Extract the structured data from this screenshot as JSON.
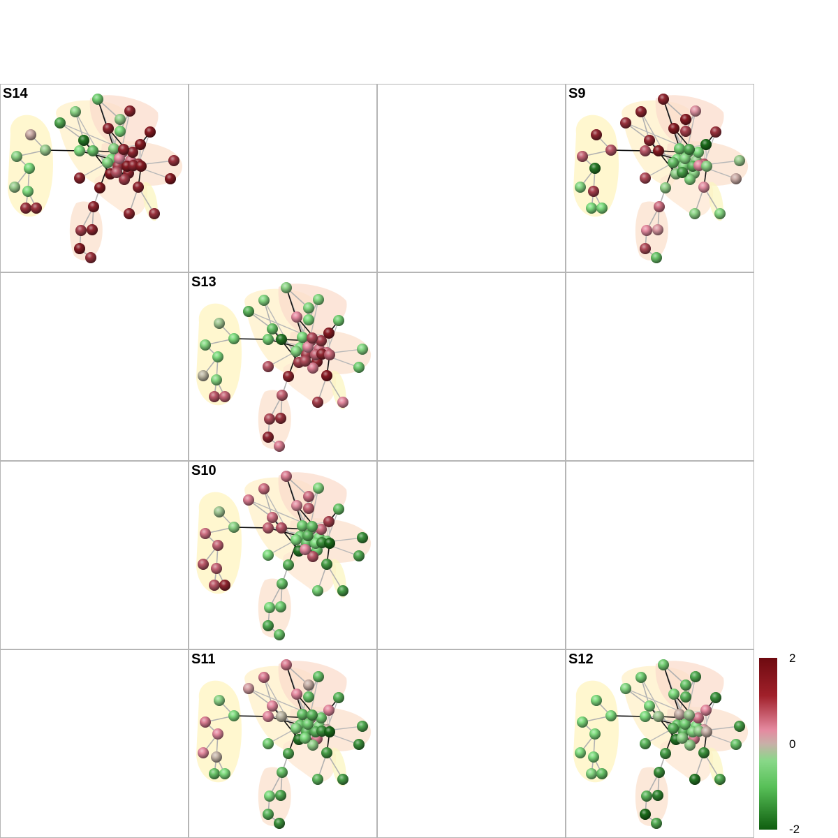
{
  "grid": {
    "rows": 4,
    "cols": 4
  },
  "panels": [
    {
      "label": "S14",
      "row": 0,
      "col": 0,
      "scheme": "a"
    },
    {
      "label": "S9",
      "row": 0,
      "col": 3,
      "scheme": "b"
    },
    {
      "label": "S13",
      "row": 1,
      "col": 1,
      "scheme": "c"
    },
    {
      "label": "S10",
      "row": 2,
      "col": 1,
      "scheme": "d"
    },
    {
      "label": "S11",
      "row": 3,
      "col": 1,
      "scheme": "e"
    },
    {
      "label": "S12",
      "row": 3,
      "col": 3,
      "scheme": "f"
    }
  ],
  "node_values": {
    "a": [
      0.2,
      -0.6,
      -0.8,
      -1.0,
      -0.6,
      1.7,
      1.7,
      -1.0,
      -0.8,
      -1.4,
      -1.0,
      -1.2,
      -1.8,
      -1.1,
      1.8,
      -0.7,
      -1.0,
      1.8,
      1.9,
      1.7,
      1.9,
      1.8,
      1.8,
      1.7,
      1.9,
      1.8,
      1.6,
      1.8,
      1.9,
      1.7,
      1.8,
      1.9,
      1.2,
      -1.0,
      1.2,
      1.6,
      1.8,
      1.6,
      1.7,
      1.8,
      1.9,
      1.4,
      -0.9,
      1.0,
      -0.8,
      1.8,
      1.8,
      1.9,
      1.9
    ],
    "b": [
      1.8,
      1.4,
      1.3,
      -1.8,
      -0.9,
      -1.0,
      -1.0,
      1.6,
      1.8,
      1.7,
      1.4,
      1.9,
      1.8,
      1.8,
      1.9,
      1.9,
      1.6,
      0.8,
      1.7,
      -0.6,
      0.2,
      1.5,
      -0.8,
      -0.9,
      -0.7,
      1.2,
      1.0,
      0.7,
      1.5,
      -1.2,
      0.9,
      -0.7,
      -0.9,
      -1.0,
      -0.7,
      -0.9,
      -0.8,
      -0.9,
      1.4,
      -1.0,
      -1.3,
      -1.5,
      -1.2,
      -0.9,
      -1.1,
      -1.4,
      1.0,
      -0.8,
      -1.9
    ],
    "c": [
      -0.5,
      -1.0,
      -0.9,
      -1.0,
      -0.1,
      1.4,
      1.3,
      -0.9,
      -0.9,
      -1.3,
      -1.1,
      -1.8,
      -1.2,
      -0.8,
      1.0,
      -0.9,
      -1.0,
      -0.9,
      -1.1,
      -0.9,
      -1.1,
      1.4,
      1.6,
      1.0,
      1.8,
      1.3,
      1.5,
      1.7,
      1.8,
      1.1,
      1.9,
      1.6,
      1.2,
      -1.0,
      1.2,
      1.6,
      1.8,
      1.1,
      1.2,
      1.6,
      1.3,
      1.5,
      -0.9,
      1.0,
      -1.0,
      1.5,
      1.8,
      1.3,
      1.9
    ],
    "d": [
      -0.5,
      -0.8,
      1.2,
      1.3,
      1.4,
      1.4,
      1.8,
      1.3,
      1.2,
      1.1,
      1.3,
      1.4,
      1.2,
      1.1,
      0.9,
      1.2,
      1.3,
      -0.9,
      -1.2,
      -1.6,
      -1.4,
      -1.0,
      -1.1,
      -1.5,
      -1.3,
      -1.2,
      -1.0,
      -1.1,
      -1.4,
      -1.2,
      -1.5,
      -1.8,
      -0.1,
      -1.1,
      -1.0,
      -1.2,
      -1.1,
      1.4,
      -0.9,
      1.2,
      -1.0,
      1.0,
      -1.0,
      -1.3,
      -1.1,
      -1.2,
      -1.6,
      -1.9,
      1.6
    ],
    "e": [
      -0.8,
      -1.0,
      1.1,
      1.0,
      1.0,
      -1.2,
      -1.0,
      0.0,
      1.1,
      0.5,
      1.0,
      -0.1,
      1.0,
      1.1,
      1.0,
      0.1,
      -1.2,
      -1.2,
      -1.3,
      -1.4,
      -1.6,
      -1.1,
      -1.3,
      -1.5,
      -1.4,
      -1.2,
      -1.0,
      -1.4,
      -1.3,
      -1.6,
      -1.5,
      -1.8,
      0.1,
      -1.2,
      -0.9,
      -1.3,
      1.1,
      -0.7,
      0.2,
      -1.1,
      -1.3,
      -1.0,
      -0.9,
      -1.1,
      -1.2,
      -1.3,
      -1.6,
      -1.9,
      1.0
    ],
    "f": [
      -1.0,
      -1.0,
      -1.0,
      -1.0,
      -1.0,
      -0.9,
      -1.2,
      -1.0,
      -1.1,
      -0.9,
      -1.0,
      -0.5,
      -1.0,
      -1.1,
      -1.0,
      -1.2,
      -1.3,
      -1.4,
      -1.6,
      -1.5,
      -1.2,
      -1.3,
      -1.8,
      -1.4,
      -1.5,
      -1.6,
      -1.3,
      -1.7,
      -1.9,
      -1.4,
      -1.6,
      -1.8,
      1.0,
      -1.2,
      -1.0,
      -1.3,
      1.1,
      -0.7,
      0.6,
      1.1,
      -0.9,
      -0.8,
      -1.3,
      -1.1,
      0.1,
      -0.5,
      -0.7,
      0.1,
      1.0
    ]
  },
  "colorbar": {
    "max_label": "2",
    "mid_label": "0",
    "min_label": "-2",
    "range": [
      -2,
      2
    ]
  },
  "colors": {
    "high": "#7a0d14",
    "mid_high": "#e58aa0",
    "neutral": "#c4b4a8",
    "mid_low": "#7fdc7f",
    "low": "#0f5e0f"
  }
}
